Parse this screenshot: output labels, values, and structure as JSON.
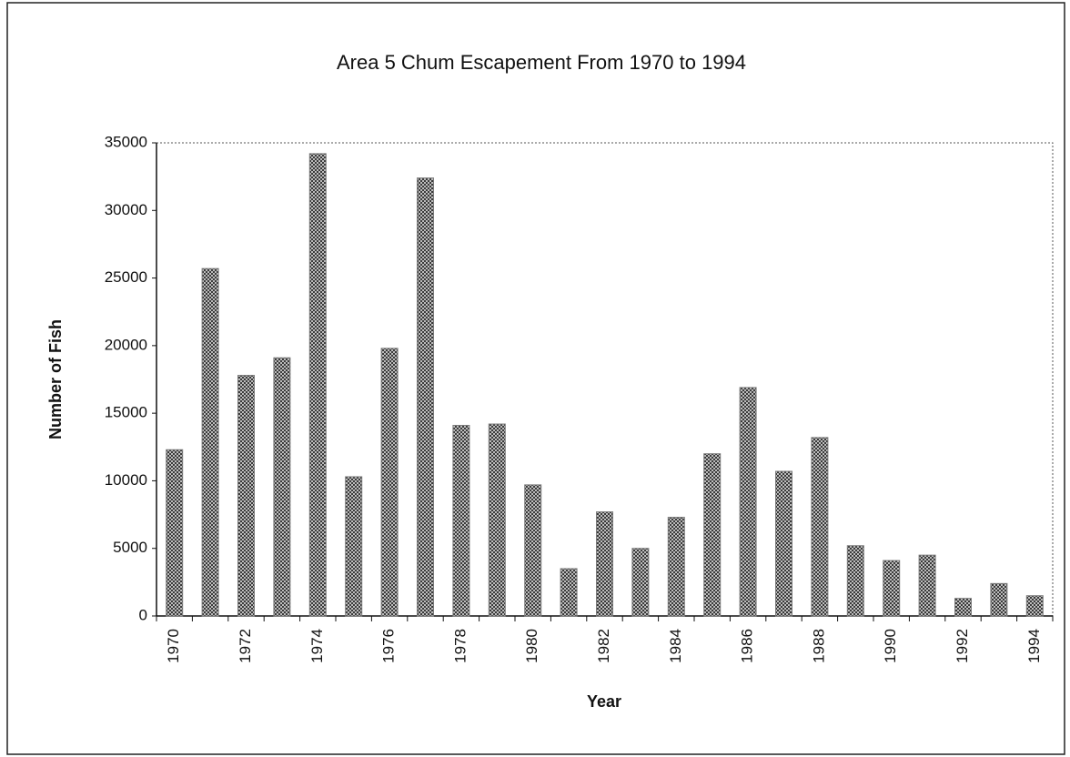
{
  "chart_data": {
    "type": "bar",
    "title": "Area 5 Chum Escapement From 1970 to 1994",
    "x_label": "Year",
    "y_label": "Number of Fish",
    "categories": [
      "1970",
      null,
      "1972",
      null,
      "1974",
      null,
      "1976",
      null,
      "1978",
      null,
      "1980",
      null,
      "1982",
      null,
      "1984",
      null,
      "1986",
      null,
      "1988",
      null,
      "1990",
      null,
      "1992",
      null,
      "1994"
    ],
    "values": [
      12300,
      25700,
      17800,
      19100,
      34200,
      10300,
      19800,
      32400,
      14100,
      14200,
      9700,
      3500,
      7700,
      5000,
      7300,
      12000,
      16900,
      10700,
      13200,
      5200,
      4100,
      4500,
      1300,
      2400,
      1500
    ],
    "color": "#7a7a7a",
    "ylim": [
      0,
      35000
    ],
    "yticks": [
      0,
      5000,
      10000,
      15000,
      20000,
      25000,
      30000,
      35000
    ],
    "grid": false
  }
}
